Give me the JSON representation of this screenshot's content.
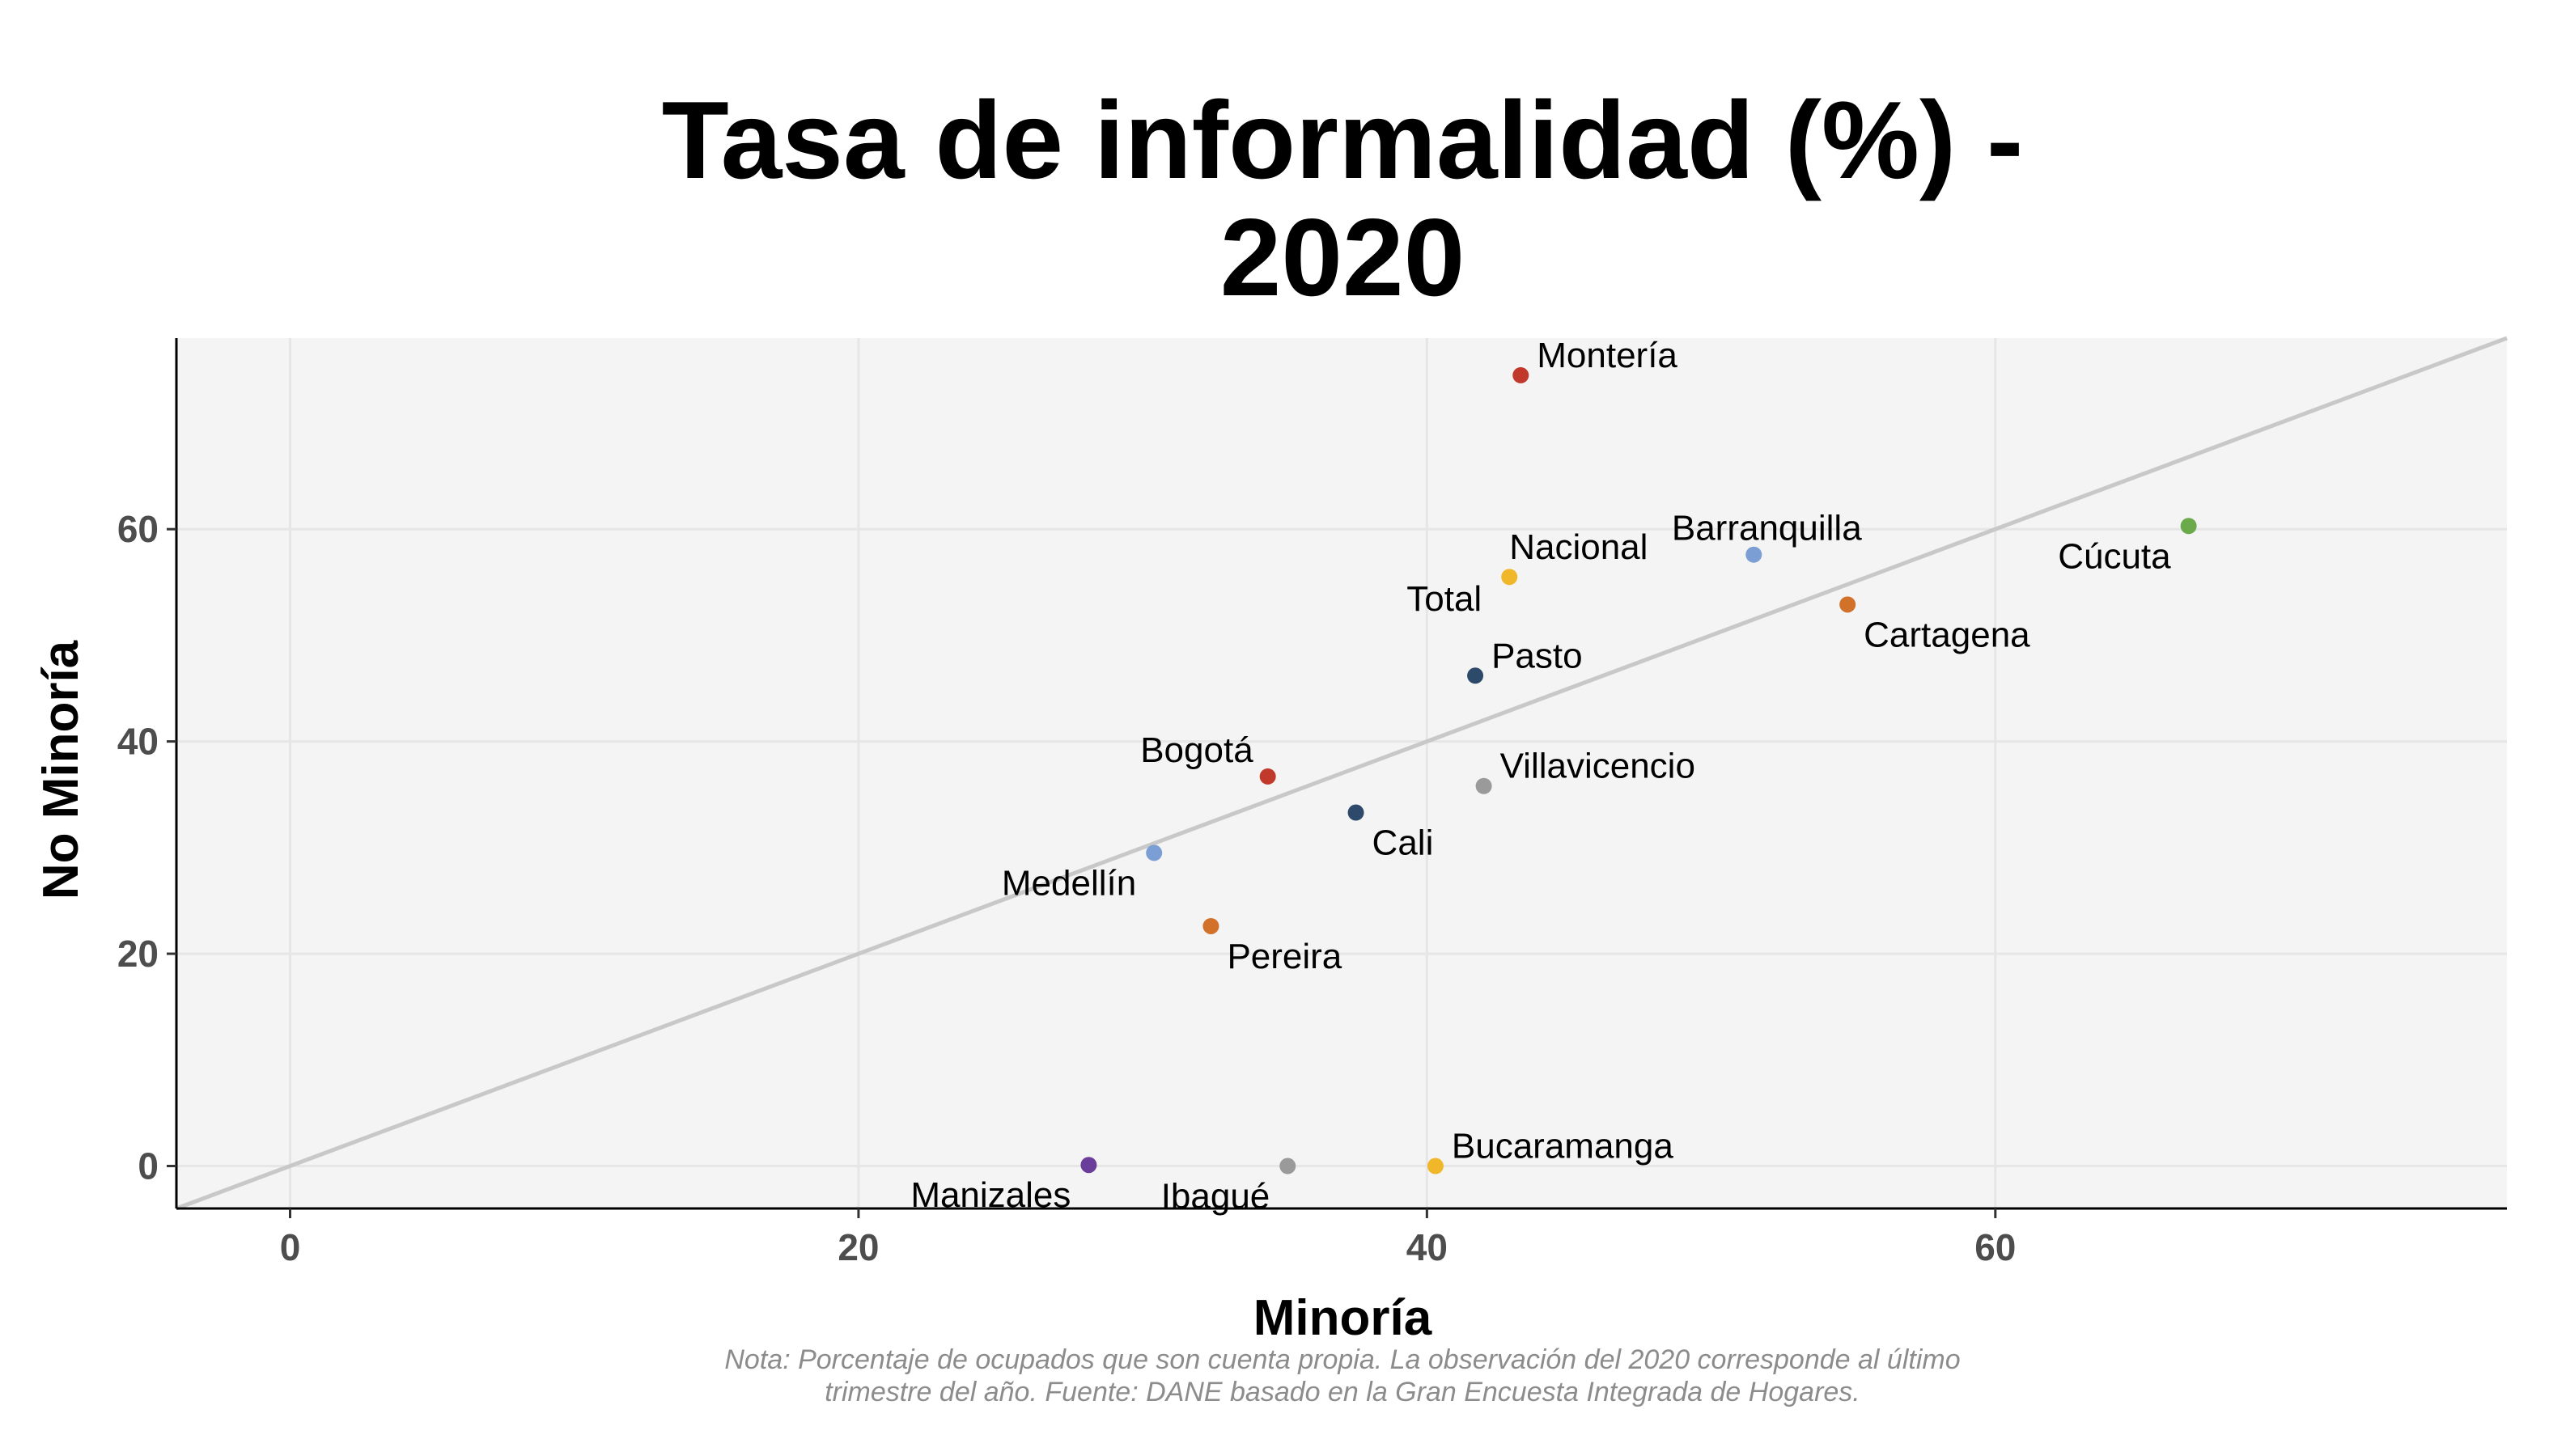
{
  "chart_data": {
    "type": "scatter",
    "title_lines": [
      "Tasa de informalidad (%) -",
      "2020"
    ],
    "xlabel": "Minoría",
    "ylabel": "No Minoría",
    "xlim": [
      -4,
      78
    ],
    "ylim": [
      -4,
      78
    ],
    "xticks": [
      0,
      20,
      40,
      60
    ],
    "yticks": [
      0,
      20,
      40,
      60
    ],
    "grid": true,
    "reference_line": "y = x",
    "note_lines": [
      "Nota: Porcentaje de ocupados que son cuenta propia. La observación del 2020 corresponde al último",
      "trimestre del año. Fuente: DANE basado en la Gran Encuesta Integrada de Hogares."
    ],
    "points": [
      {
        "label": "Montería",
        "x": 43.3,
        "y": 74.5,
        "color": "#c0392b",
        "label_pos": "upper-right"
      },
      {
        "label": "Barranquilla",
        "x": 51.5,
        "y": 57.6,
        "color": "#7b9fd4",
        "label_pos": "upper-center"
      },
      {
        "label": "Cúcuta",
        "x": 66.8,
        "y": 60.3,
        "color": "#6aaa4a",
        "label_pos": "lower-left"
      },
      {
        "label": "Nacional Total",
        "x": 42.9,
        "y": 55.5,
        "color": "#f0b72b",
        "label_pos": "split"
      },
      {
        "label": "Cartagena",
        "x": 54.8,
        "y": 52.9,
        "color": "#d2722a",
        "label_pos": "lower-right"
      },
      {
        "label": "Pasto",
        "x": 41.7,
        "y": 46.2,
        "color": "#2e4a6b",
        "label_pos": "upper-right"
      },
      {
        "label": "Villavicencio",
        "x": 42.0,
        "y": 35.8,
        "color": "#9a9a9a",
        "label_pos": "upper-right"
      },
      {
        "label": "Bogotá",
        "x": 34.4,
        "y": 36.7,
        "color": "#c0392b",
        "label_pos": "upper-left"
      },
      {
        "label": "Cali",
        "x": 37.5,
        "y": 33.3,
        "color": "#2e4a6b",
        "label_pos": "lower-right"
      },
      {
        "label": "Medellín",
        "x": 30.4,
        "y": 29.5,
        "color": "#7b9fd4",
        "label_pos": "lower-left"
      },
      {
        "label": "Pereira",
        "x": 32.4,
        "y": 22.6,
        "color": "#d2722a",
        "label_pos": "lower-right"
      },
      {
        "label": "Manizales",
        "x": 28.1,
        "y": 0.1,
        "color": "#6a3d9a",
        "label_pos": "lower-left"
      },
      {
        "label": "Ibagué",
        "x": 35.1,
        "y": 0.0,
        "color": "#9a9a9a",
        "label_pos": "lower-left"
      },
      {
        "label": "Bucaramanga",
        "x": 40.3,
        "y": 0.0,
        "color": "#f0b72b",
        "label_pos": "upper-right"
      }
    ],
    "panel_background": "#f4f4f4",
    "grid_color": "#e6e6e6",
    "reference_line_color": "#c8c8c8"
  }
}
